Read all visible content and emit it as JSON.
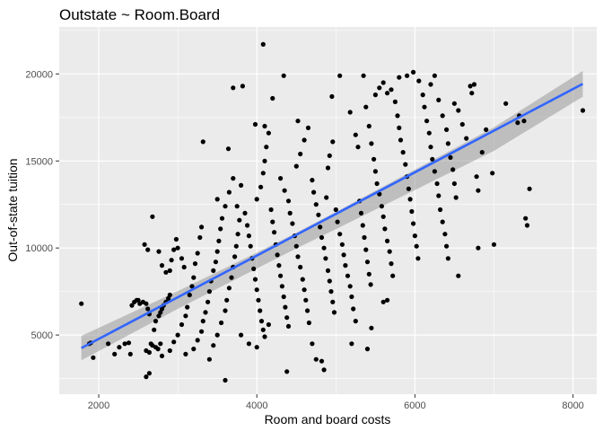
{
  "chart_data": {
    "type": "scatter",
    "title": "Outstate ~ Room.Board",
    "xlabel": "Room and board costs",
    "ylabel": "Out-of-state tuition",
    "xlim": [
      1500,
      8300
    ],
    "ylim": [
      1600,
      22700
    ],
    "x_ticks": [
      2000,
      4000,
      6000,
      8000
    ],
    "y_ticks": [
      5000,
      10000,
      15000,
      20000
    ],
    "x_tick_labels": [
      "2000",
      "4000",
      "6000",
      "8000"
    ],
    "y_tick_labels": [
      "5000",
      "10000",
      "15000",
      "20000"
    ],
    "grid": true,
    "panel_background": "#ebebeb",
    "grid_color": "#ffffff",
    "point_color": "#000000",
    "fit_color": "#3366ff",
    "band_color": "#999999",
    "fit": {
      "x": [
        1780,
        8124
      ],
      "y": [
        4250,
        19430
      ]
    },
    "band": {
      "x": [
        1780,
        3000,
        4000,
        4500,
        5000,
        6000,
        7000,
        8124
      ],
      "upper": [
        4950,
        7520,
        9730,
        10880,
        12070,
        14500,
        16930,
        20170
      ],
      "lower": [
        3550,
        6500,
        8820,
        9980,
        11080,
        13330,
        15580,
        18690
      ]
    },
    "points": [
      [
        1780,
        6800
      ],
      [
        1880,
        4500
      ],
      [
        1900,
        4550
      ],
      [
        1930,
        3700
      ],
      [
        2120,
        4500
      ],
      [
        2200,
        3900
      ],
      [
        2260,
        4300
      ],
      [
        2330,
        4500
      ],
      [
        2380,
        4550
      ],
      [
        2400,
        3900
      ],
      [
        2420,
        6700
      ],
      [
        2450,
        6900
      ],
      [
        2480,
        7000
      ],
      [
        2500,
        7000
      ],
      [
        2520,
        6800
      ],
      [
        2560,
        6900
      ],
      [
        2600,
        6800
      ],
      [
        2620,
        6500
      ],
      [
        2640,
        6200
      ],
      [
        2580,
        10200
      ],
      [
        2620,
        9900
      ],
      [
        2680,
        11800
      ],
      [
        2600,
        4100
      ],
      [
        2640,
        4000
      ],
      [
        2660,
        4500
      ],
      [
        2680,
        4400
      ],
      [
        2720,
        4300
      ],
      [
        2750,
        4200
      ],
      [
        2780,
        4500
      ],
      [
        2600,
        2600
      ],
      [
        2640,
        2800
      ],
      [
        2700,
        5300
      ],
      [
        2720,
        5800
      ],
      [
        2760,
        6100
      ],
      [
        2780,
        6300
      ],
      [
        2800,
        6500
      ],
      [
        2820,
        6700
      ],
      [
        2850,
        6900
      ],
      [
        2880,
        7100
      ],
      [
        2900,
        7300
      ],
      [
        2760,
        9800
      ],
      [
        2800,
        9000
      ],
      [
        2850,
        8600
      ],
      [
        2900,
        8700
      ],
      [
        2920,
        9300
      ],
      [
        2950,
        9900
      ],
      [
        2980,
        10500
      ],
      [
        3000,
        10000
      ],
      [
        3050,
        9400
      ],
      [
        3080,
        8900
      ],
      [
        2800,
        3800
      ],
      [
        2900,
        4100
      ],
      [
        2950,
        4600
      ],
      [
        3000,
        5000
      ],
      [
        3050,
        5600
      ],
      [
        3100,
        6100
      ],
      [
        3120,
        6600
      ],
      [
        3150,
        7300
      ],
      [
        3180,
        7800
      ],
      [
        3200,
        8300
      ],
      [
        3220,
        9100
      ],
      [
        3250,
        9700
      ],
      [
        3280,
        10600
      ],
      [
        3300,
        11200
      ],
      [
        3100,
        3900
      ],
      [
        3200,
        4200
      ],
      [
        3250,
        4700
      ],
      [
        3300,
        5200
      ],
      [
        3320,
        5800
      ],
      [
        3350,
        6300
      ],
      [
        3380,
        6900
      ],
      [
        3400,
        7500
      ],
      [
        3420,
        8100
      ],
      [
        3450,
        8700
      ],
      [
        3480,
        9200
      ],
      [
        3500,
        9800
      ],
      [
        3520,
        10400
      ],
      [
        3540,
        11100
      ],
      [
        3560,
        11700
      ],
      [
        3400,
        3600
      ],
      [
        3450,
        4400
      ],
      [
        3500,
        5000
      ],
      [
        3550,
        5700
      ],
      [
        3600,
        6400
      ],
      [
        3620,
        7000
      ],
      [
        3650,
        7700
      ],
      [
        3680,
        8300
      ],
      [
        3700,
        8900
      ],
      [
        3720,
        9500
      ],
      [
        3740,
        10100
      ],
      [
        3760,
        10800
      ],
      [
        3780,
        11600
      ],
      [
        3600,
        12400
      ],
      [
        3650,
        13200
      ],
      [
        3700,
        14000
      ],
      [
        3600,
        2400
      ],
      [
        3640,
        15700
      ],
      [
        3700,
        19200
      ],
      [
        3820,
        19300
      ],
      [
        3320,
        16100
      ],
      [
        3500,
        12800
      ],
      [
        3750,
        12400
      ],
      [
        3800,
        13600
      ],
      [
        3850,
        12000
      ],
      [
        3880,
        11300
      ],
      [
        3900,
        10700
      ],
      [
        3920,
        10100
      ],
      [
        3940,
        9400
      ],
      [
        3960,
        8800
      ],
      [
        3980,
        8200
      ],
      [
        4000,
        7600
      ],
      [
        4020,
        7000
      ],
      [
        4040,
        6400
      ],
      [
        4060,
        5800
      ],
      [
        4080,
        5300
      ],
      [
        3800,
        5000
      ],
      [
        3900,
        4500
      ],
      [
        4000,
        4300
      ],
      [
        4100,
        4900
      ],
      [
        4150,
        5600
      ],
      [
        4000,
        12800
      ],
      [
        4050,
        13500
      ],
      [
        4080,
        14300
      ],
      [
        4100,
        15000
      ],
      [
        4120,
        15800
      ],
      [
        4150,
        16600
      ],
      [
        3980,
        17100
      ],
      [
        4100,
        17000
      ],
      [
        4200,
        18600
      ],
      [
        4080,
        21700
      ],
      [
        4180,
        12200
      ],
      [
        4200,
        11500
      ],
      [
        4220,
        10900
      ],
      [
        4240,
        10200
      ],
      [
        4260,
        9600
      ],
      [
        4280,
        9000
      ],
      [
        4300,
        8400
      ],
      [
        4320,
        7800
      ],
      [
        4340,
        7200
      ],
      [
        4360,
        6600
      ],
      [
        4380,
        6000
      ],
      [
        4400,
        5500
      ],
      [
        4380,
        2900
      ],
      [
        4340,
        19900
      ],
      [
        4300,
        14000
      ],
      [
        4350,
        13300
      ],
      [
        4400,
        12700
      ],
      [
        4420,
        12000
      ],
      [
        4450,
        11400
      ],
      [
        4480,
        10700
      ],
      [
        4500,
        10100
      ],
      [
        4520,
        9500
      ],
      [
        4550,
        8900
      ],
      [
        4580,
        8200
      ],
      [
        4600,
        7600
      ],
      [
        4620,
        7000
      ],
      [
        4640,
        6400
      ],
      [
        4660,
        5700
      ],
      [
        4700,
        4500
      ],
      [
        4750,
        3600
      ],
      [
        4500,
        14700
      ],
      [
        4550,
        15400
      ],
      [
        4600,
        16200
      ],
      [
        4520,
        17300
      ],
      [
        4650,
        16900
      ],
      [
        4700,
        13900
      ],
      [
        4720,
        13200
      ],
      [
        4750,
        12500
      ],
      [
        4780,
        11900
      ],
      [
        4800,
        11200
      ],
      [
        4820,
        10600
      ],
      [
        4850,
        10000
      ],
      [
        4870,
        9400
      ],
      [
        4900,
        8700
      ],
      [
        4920,
        8100
      ],
      [
        4940,
        7500
      ],
      [
        4960,
        6900
      ],
      [
        4980,
        6300
      ],
      [
        4850,
        3000
      ],
      [
        4820,
        3500
      ],
      [
        4880,
        12900
      ],
      [
        4900,
        14600
      ],
      [
        4920,
        15300
      ],
      [
        4950,
        18700
      ],
      [
        4960,
        16100
      ],
      [
        5000,
        12200
      ],
      [
        5020,
        11500
      ],
      [
        5050,
        10800
      ],
      [
        5080,
        10200
      ],
      [
        5100,
        9600
      ],
      [
        5120,
        9000
      ],
      [
        5150,
        8400
      ],
      [
        5180,
        7800
      ],
      [
        5200,
        7200
      ],
      [
        5220,
        6500
      ],
      [
        5250,
        5800
      ],
      [
        5200,
        4500
      ],
      [
        5050,
        19900
      ],
      [
        5180,
        17800
      ],
      [
        5250,
        16500
      ],
      [
        5280,
        15800
      ],
      [
        5300,
        12700
      ],
      [
        5320,
        12000
      ],
      [
        5340,
        11300
      ],
      [
        5360,
        10600
      ],
      [
        5380,
        9900
      ],
      [
        5400,
        9200
      ],
      [
        5420,
        8500
      ],
      [
        5440,
        7900
      ],
      [
        5450,
        5400
      ],
      [
        5400,
        4200
      ],
      [
        5350,
        19900
      ],
      [
        5380,
        18100
      ],
      [
        5420,
        17000
      ],
      [
        5450,
        16000
      ],
      [
        5480,
        15100
      ],
      [
        5500,
        14400
      ],
      [
        5520,
        13700
      ],
      [
        5550,
        13100
      ],
      [
        5580,
        12400
      ],
      [
        5600,
        11800
      ],
      [
        5620,
        11100
      ],
      [
        5650,
        10400
      ],
      [
        5680,
        9800
      ],
      [
        5700,
        9100
      ],
      [
        5720,
        8400
      ],
      [
        5600,
        6900
      ],
      [
        5650,
        7000
      ],
      [
        5500,
        18800
      ],
      [
        5550,
        19200
      ],
      [
        5600,
        19500
      ],
      [
        5650,
        18900
      ],
      [
        5700,
        19100
      ],
      [
        5750,
        18400
      ],
      [
        5780,
        17600
      ],
      [
        5800,
        16900
      ],
      [
        5820,
        16200
      ],
      [
        5850,
        15500
      ],
      [
        5880,
        14800
      ],
      [
        5900,
        14100
      ],
      [
        5920,
        13400
      ],
      [
        5940,
        12800
      ],
      [
        5960,
        12100
      ],
      [
        5980,
        11400
      ],
      [
        6000,
        10700
      ],
      [
        6020,
        10100
      ],
      [
        6040,
        9400
      ],
      [
        5800,
        19800
      ],
      [
        5900,
        19900
      ],
      [
        5980,
        20100
      ],
      [
        6050,
        19600
      ],
      [
        6100,
        18800
      ],
      [
        6120,
        18100
      ],
      [
        6150,
        17300
      ],
      [
        6180,
        16600
      ],
      [
        6200,
        15800
      ],
      [
        6220,
        15100
      ],
      [
        6250,
        14400
      ],
      [
        6280,
        13700
      ],
      [
        6300,
        13000
      ],
      [
        6320,
        12200
      ],
      [
        6350,
        11500
      ],
      [
        6380,
        10800
      ],
      [
        6400,
        10100
      ],
      [
        6420,
        9400
      ],
      [
        6200,
        19400
      ],
      [
        6250,
        19900
      ],
      [
        6300,
        18500
      ],
      [
        6350,
        17600
      ],
      [
        6400,
        16800
      ],
      [
        6420,
        16000
      ],
      [
        6450,
        15200
      ],
      [
        6480,
        14500
      ],
      [
        6500,
        13700
      ],
      [
        6520,
        12900
      ],
      [
        6550,
        8400
      ],
      [
        6500,
        18300
      ],
      [
        6550,
        17900
      ],
      [
        6600,
        17100
      ],
      [
        6650,
        16300
      ],
      [
        6700,
        19300
      ],
      [
        6720,
        18900
      ],
      [
        6750,
        19400
      ],
      [
        6780,
        14100
      ],
      [
        6800,
        13300
      ],
      [
        6850,
        15500
      ],
      [
        6900,
        16800
      ],
      [
        6980,
        14300
      ],
      [
        7000,
        10200
      ],
      [
        6800,
        10000
      ],
      [
        7150,
        18300
      ],
      [
        7300,
        17200
      ],
      [
        7320,
        17600
      ],
      [
        7380,
        17300
      ],
      [
        7400,
        11700
      ],
      [
        7420,
        11300
      ],
      [
        7450,
        13400
      ],
      [
        8124,
        17900
      ]
    ]
  }
}
